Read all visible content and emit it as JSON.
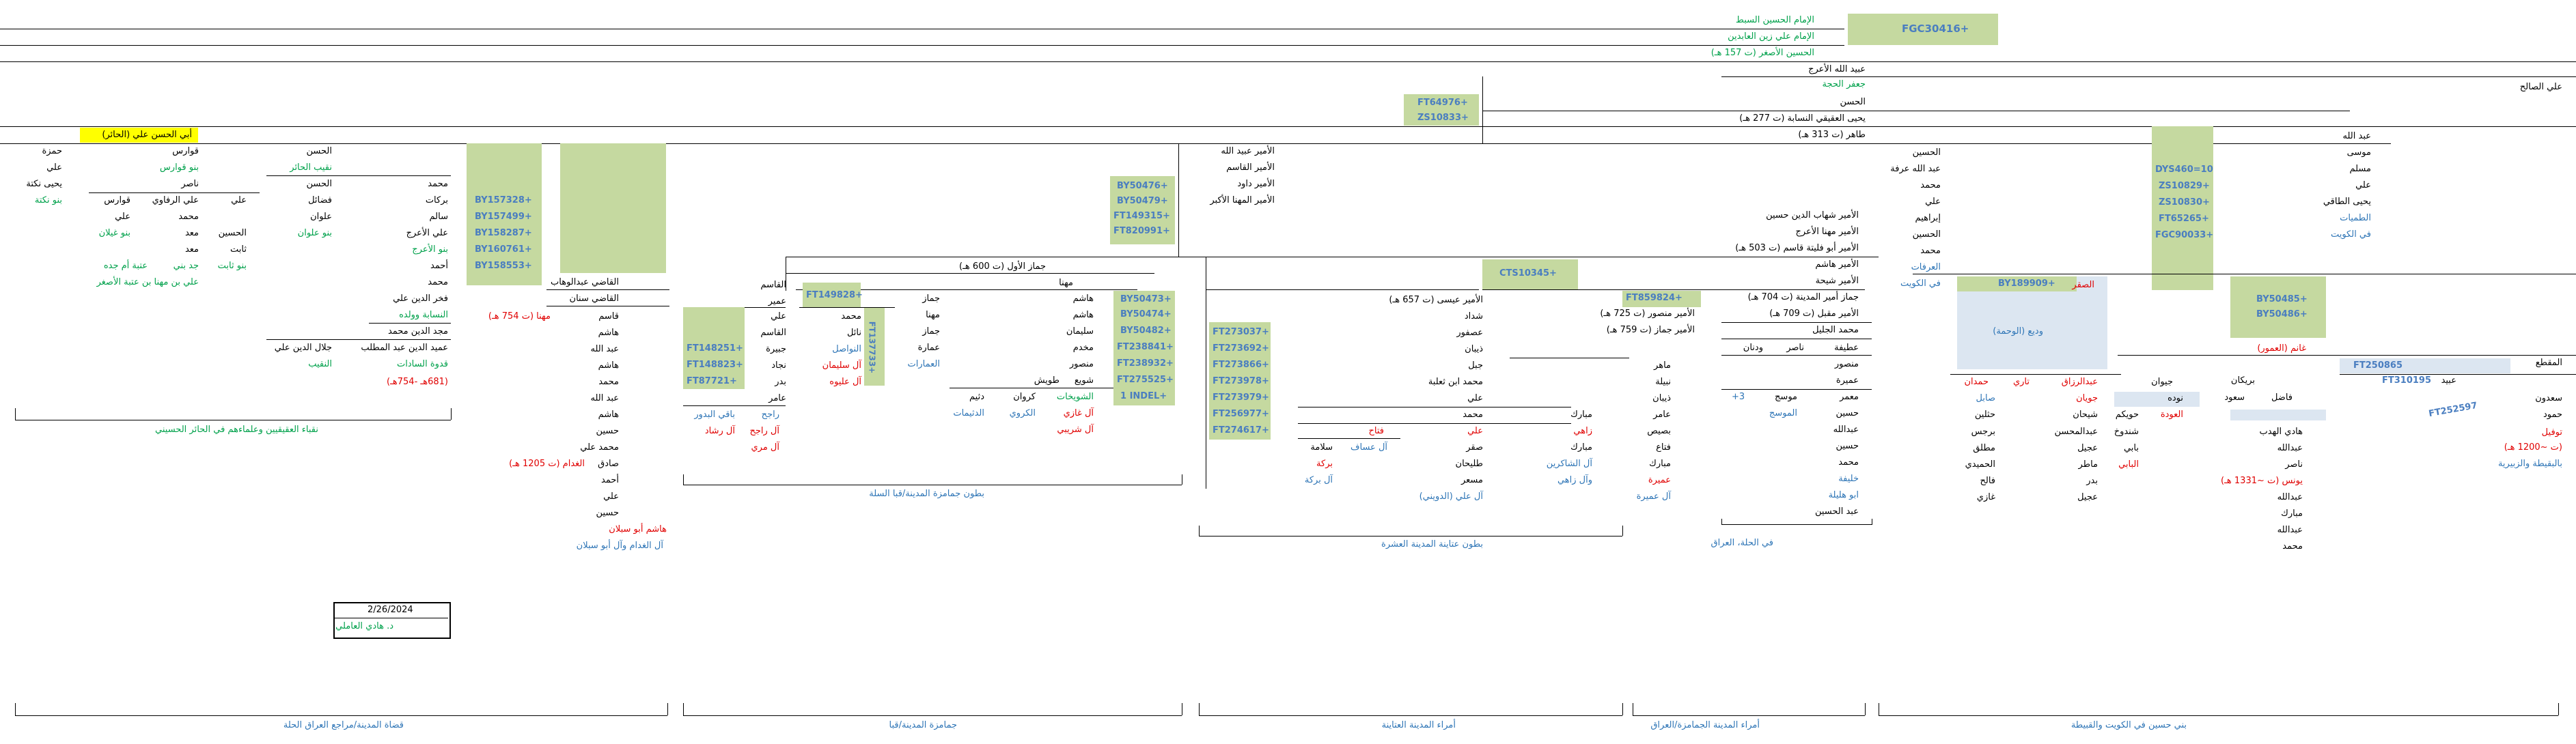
{
  "top": {
    "code_main": "FGC30416+",
    "line1": "الإمام الحسين السبط",
    "line2": "الإمام علي زين العابدين",
    "line3": "الحسين الأصغر (ت 157 هـ)",
    "line4": "عبيد الله الأعرج",
    "line5": "جعفر الحجة",
    "line6": "الحسن",
    "line7": "يحيى العقيقي النسابة (ت 277 هـ)",
    "line8": "طاهر (ت 313 هـ)",
    "codes_mid": [
      "FT64976+",
      "ZS10833+"
    ],
    "ali_salih": "علي الصالح"
  },
  "right_col": {
    "items": [
      "عبد الله",
      "موسى",
      "مسلم",
      "علي",
      "يحيى الطاقي",
      "الطميات",
      "في الكويت"
    ],
    "codes": [
      "DYS460=10",
      "ZS10829+",
      "ZS10830+",
      "FT65265+",
      "FGC90033+"
    ]
  },
  "col2": {
    "items": [
      "الحسين",
      "عبد الله عرفة",
      "محمد",
      "علي",
      "إبراهيم",
      "الحسين",
      "محمد",
      "العرفات",
      "في الكويت"
    ]
  },
  "amirs": {
    "items": [
      "الأمير شهاب الدين حسين",
      "الأمير مهنا الأعرج",
      "الأمير أبو فليتة قاسم (ت 503 هـ)",
      "الأمير هاشم",
      "الأمير شيحة",
      "جماز أمير المدينة (ت 704 هـ)",
      "الأمير مقبل (ت 709 هـ)",
      "محمد الجليل"
    ],
    "code_cts": "CTS10345+",
    "code_ft85": "FT859824+",
    "mansour": "الأمير منصور (ت 725 هـ)",
    "jammaz2": "الأمير جماز (ت 759 هـ)",
    "isa": "الأمير عيسى (ت 657 هـ)",
    "shaddad": "شداد",
    "asfour": "عصفور",
    "dhiyab": "ذيبان",
    "jabal": "جبل",
    "muhammad_thaalba": "محمد ابن ثعلبة",
    "ali": "علي"
  },
  "sons_abdallah": {
    "items": [
      "الأمير عبيد الله",
      "الأمير القاسم",
      "الأمير داود",
      "الأمير المهنا الأكبر"
    ],
    "codes": [
      "BY50476+",
      "BY50479+",
      "FT149315+",
      "FT820991+"
    ]
  },
  "right_group": {
    "by189909": "BY189909+",
    "saqr": "الصقر",
    "wadih": "وديع (الوحمة)",
    "ghanim": "غانم (العمور)",
    "by50485": "BY50485+",
    "by50486": "BY50486+",
    "muqtaa": "المقطع",
    "ft250865": "FT250865",
    "ft310195": "FT310195",
    "ubaid": "عبيد",
    "buraikan": "بريكان",
    "fadhil": "فاضل",
    "saadoun": "سعدون",
    "hamoud": "حمود",
    "ft252597": "FT252597",
    "tawfil": "توفيل",
    "date1200": "(ت ~1200 هـ)",
    "place": "بالبقيطة والزبيرية",
    "saoud": "سعود",
    "hadi_alhadab": "هادي الهدب",
    "abdullah": "عبدالله",
    "nasser": "ناصر",
    "younis": "يونس (ت ~1331 هـ)",
    "abdullah2": "عبدالله",
    "mubarak": "مبارك",
    "abdullah3": "عبدالله",
    "muhammad": "محمد",
    "jiwan": "جيوان",
    "nawda": "نوده",
    "alawda": "العودة",
    "huwaykim": "حويكم",
    "shunduh": "شندوخ",
    "babi": "بابي",
    "albabi": "البابي",
    "abdulrazzaq": "عبدالرزاق",
    "tari": "تاري",
    "hamdan": "حمدان",
    "jiwan2": "جويان",
    "sabil": "صابل",
    "hathloul": "حثلين",
    "barjis": "برجس",
    "mutlaq": "مطلق",
    "humaidi": "الحميدي",
    "falih": "فالح",
    "ghazi": "غازي",
    "shibhan": "شيحان",
    "abdulmuhsin": "عبدالمحسن",
    "ajil": "عجيل",
    "mather": "ماطر",
    "badr": "بدر",
    "ajil2": "عجيل",
    "rashid": "راشد",
    "wadhan": "ودنان",
    "nasser2": "ناصر"
  },
  "hilla_group": {
    "atiya": "عطيفة",
    "mansour": "منصور",
    "umaira": "عميرة",
    "muammar": "معمر",
    "hussein": "حسين",
    "abdullah": "عبدالله",
    "hussein2": "حسين",
    "muhammad": "محمد",
    "khalif": "خليفة",
    "abu_halila": "ابو هليلة",
    "abdulhussein": "عبد الحسين",
    "mousij": "موسج",
    "almousij": "الموسج",
    "plus3": "+3",
    "caption": "في الحلة، العراق"
  },
  "maher_group": {
    "maher": "ماهر",
    "nabila": "نبيلة",
    "dhiyab": "ذيبان",
    "amer": "عامر",
    "bisais": "بصيص",
    "fatia": "فتاع",
    "mubarak": "مبارك",
    "omaira": "عميرة",
    "al_omaira": "آل عميرة",
    "mubarak2": "مبارك",
    "zahi": "زاهي",
    "mubarak3": "مبارك",
    "al_shawkan": "آل الشاكرين",
    "al_zahi": "وآل زاهي",
    "saqr": "صقر",
    "tulaihan": "طليحان",
    "musaar": "مسعر",
    "al_ali_dawi": "آل علي (الدويني)",
    "muhammad": "محمد",
    "ali": "علي",
    "fattah": "فتاح",
    "salama": "سلامة",
    "barakah": "بركة",
    "al_barakah": "آل بركة",
    "al_assaf": "آل عساف"
  },
  "ft_codes": [
    "FT273037+",
    "FT273692+",
    "FT273866+",
    "FT273978+",
    "FT273979+",
    "FT256977+",
    "FT274617+"
  ],
  "jammaz_group": {
    "jammaz_awwal": "جماز الأول (ت 600 هـ)",
    "muhanna": "مهنا",
    "ft149828": "FT149828+",
    "qasim": "القاسم",
    "umair": "عمير",
    "codes": [
      "BY50473+",
      "BY50474+",
      "BY50482+",
      "FT238841+",
      "FT238932+",
      "FT275525+",
      "1 INDEL+"
    ],
    "hashim_list": [
      "هاشم",
      "هاشم",
      "سليمان",
      "مخدم",
      "منصور",
      "شويع"
    ],
    "jammaz_list": [
      "جماز",
      "مهنا",
      "جماز",
      "عمارة"
    ],
    "amarat": "العمارات",
    "shuwaish": "الشويخات",
    "al_ghazi": "آل غازي",
    "al_sharbi": "آل شريبي",
    "kurwan": "كروان",
    "alkarwi": "الكروي",
    "tuwaish": "طويش",
    "dhaim": "دثيم",
    "aldhaim": "الدثيمات",
    "muhammad": "محمد",
    "nayil": "نائل",
    "alnawasil": "النواصل",
    "al_sulaiman": "آل سليمان",
    "al_alayoh": "آل عليوه",
    "ft137733": "FT137733+",
    "ali": "علي",
    "qasim2": "القاسم",
    "jabira": "جبيرة",
    "najjad": "نجاد",
    "badr": "بدر",
    "amer": "عامر",
    "codes2": [
      "FT148251+",
      "FT148823+",
      "FT87721+"
    ],
    "baqi_albadour": "باقي البدور",
    "al_rashid": "آل رشاد",
    "rajih": "راجح",
    "al_rajih": "آل راجح",
    "al_marri": "آل مري"
  },
  "qadi_group": {
    "abdulwahhab": "القاضي عبدالوهاب",
    "sinan": "القاضي سنان",
    "qasim": "قاسم",
    "hashim": "هاشم",
    "abdullah": "عبد الله",
    "hashim2": "هاشم",
    "muhammad": "محمد",
    "abdullah2": "عبد الله",
    "hashim3": "هاشم",
    "hussein": "حسين",
    "muhammad_ali": "محمد علي",
    "sadiq": "صادق",
    "alghaddam": "الغدام (ت 1205 هـ)",
    "ahmad": "أحمد",
    "ali": "علي",
    "hussein2": "حسين",
    "hashim_abu": "هاشم أبو سبلان",
    "al_ghaddam": "آل الغدام وآل أبو سبلان",
    "muhanna": "مهنا (ت 754 هـ)",
    "codes": [
      "BY157328+",
      "BY157499+",
      "BY158287+",
      "BY160761+",
      "BY158553+"
    ]
  },
  "left_group": {
    "abu_hassan": "أبي الحسن علي (الحائر)",
    "hamza": "حمزة",
    "ali": "علي",
    "yahya_nakta": "يحيى نكتة",
    "banu_nakta": "بنو نكتة",
    "qawarees": "قوارس",
    "banu_qawarees": "بنو قوارس",
    "nasser": "ناصر",
    "qawarees2": "قوارس",
    "ali_rifaawi": "علي الرفاوي",
    "ali2": "علي",
    "ali3": "علي",
    "muhammad": "محمد",
    "hussein": "الحسين",
    "muaiz": "معد",
    "banu_ghailan": "بنو غيلان",
    "muaiz2": "معد",
    "thabit": "ثابت",
    "banu_thabit": "بنو ثابت",
    "jadd_bani": "جد بني",
    "ataba": "عتبة أم جده",
    "ali_muhanna": "علي بن مهنا بن عتبة الأصغر",
    "hasan": "الحسن",
    "naqib": "نقيب الحائر",
    "hasan2": "الحسن",
    "fadail": "فضائل",
    "alwan": "علوان",
    "banu_alwan": "بنو علوان",
    "muhammad2": "محمد",
    "barakat": "بركات",
    "salim": "سالم",
    "ali_araj": "علي الأعرج",
    "banu_araj": "بنو الأعرج",
    "ahmad": "أحمد",
    "muhammad3": "محمد",
    "fakhr": "فخر الدين علي",
    "nassaba": "النسابة وولده",
    "majd": "مجد الدين محمد",
    "abdulmuttalib": "عميد الدين عبد المطلب",
    "jalal": "جلال الدين علي",
    "qudwat": "قدوة السادات",
    "naqib2": "النقيب",
    "dates": "(681هـ -754هـ)",
    "caption": "نقباء العقيقيين وعلماءهم في الحائر الحسيني"
  },
  "captions": {
    "c1": "بطون جمامزة المدينة/قبا السلة",
    "c2": "بطون عتاينة المدينة العشرة",
    "c3": "في الحلة، العراق"
  },
  "bottom": {
    "b1": "قضاة المدينة/مراجع العراق الحلة",
    "b2": "جمامزة المدينة/قبا",
    "b3": "أمراء المدينة العتاينة",
    "b4": "أمراء المدينة الجمامزة/العراق",
    "b5": "بني حسين في الكويت والقبيطة"
  },
  "sign": {
    "date": "2/26/2024",
    "name": "د. هادي العاملي"
  },
  "colors": {
    "green_box": "#c5d9a0",
    "blue_box": "#dce6f1",
    "code_text": "#4a7ec0",
    "green_text": "#00a14b",
    "red_text": "#e00000"
  }
}
